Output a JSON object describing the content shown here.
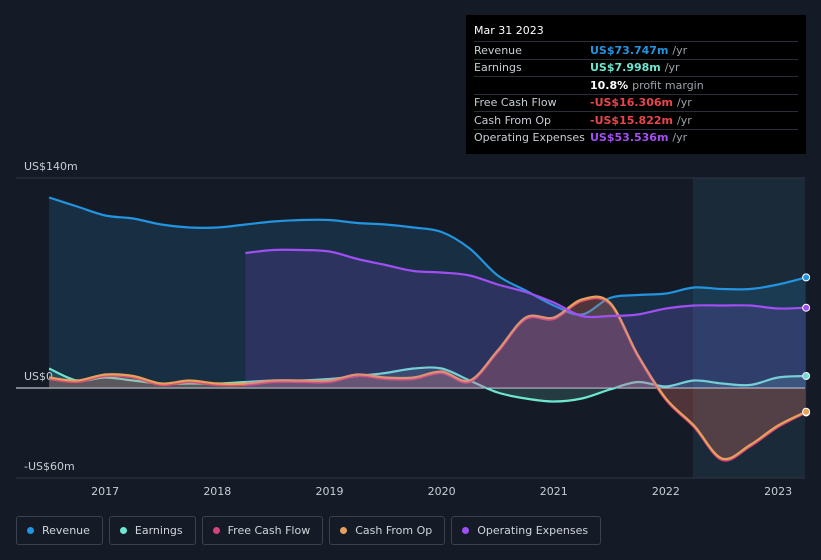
{
  "chart_data": {
    "type": "line",
    "x": [
      2016.5,
      2016.75,
      2017,
      2017.25,
      2017.5,
      2017.75,
      2018,
      2018.25,
      2018.5,
      2018.75,
      2019,
      2019.25,
      2019.5,
      2019.75,
      2020,
      2020.25,
      2020.5,
      2020.75,
      2021,
      2021.25,
      2021.5,
      2021.75,
      2022,
      2022.25,
      2022.5,
      2022.75,
      2023,
      2023.25
    ],
    "xlim": [
      2016.205,
      2023.24
    ],
    "xticks": [
      2017,
      2018,
      2019,
      2020,
      2021,
      2022,
      2023
    ],
    "ylim": [
      -60,
      140
    ],
    "yticks": [
      {
        "value": -60,
        "label": "-US$60m"
      },
      {
        "value": 0,
        "label": "US$0"
      },
      {
        "value": 140,
        "label": "US$140m"
      }
    ],
    "series": [
      {
        "name": "Revenue",
        "color": "#2394df",
        "values": [
          127,
          121,
          115,
          113,
          109,
          107,
          107,
          109,
          111,
          112,
          112,
          110,
          109,
          107,
          104,
          93,
          75,
          65,
          55,
          49,
          60,
          62,
          63,
          67,
          66,
          66,
          69,
          73.747
        ]
      },
      {
        "name": "Earnings",
        "color": "#6ee7d1",
        "values": [
          13,
          5,
          7,
          5,
          3,
          3,
          3,
          4,
          5,
          5,
          6,
          8,
          10,
          13,
          13,
          5,
          -3,
          -7,
          -9,
          -7,
          -1,
          4,
          1,
          5,
          3,
          2,
          7,
          7.998
        ]
      },
      {
        "name": "Free Cash Flow",
        "color": "#d6427a",
        "values": [
          6,
          4,
          8,
          7,
          2,
          4,
          2,
          2,
          4,
          4,
          4,
          8,
          6,
          6,
          10,
          4,
          24,
          46,
          46,
          58,
          56,
          21,
          -8,
          -26,
          -48,
          -39,
          -26,
          -16.306
        ]
      },
      {
        "name": "Cash From Op",
        "color": "#e6a15b",
        "values": [
          7,
          5,
          9,
          8,
          3,
          5,
          3,
          3,
          5,
          5,
          5,
          9,
          7,
          7,
          11,
          5,
          25,
          47,
          47,
          59,
          57,
          22,
          -7,
          -25,
          -47,
          -38,
          -25,
          -15.822
        ]
      },
      {
        "name": "Operating Expenses",
        "color": "#9f4ff2",
        "values": [
          null,
          null,
          null,
          null,
          null,
          null,
          null,
          90,
          92,
          92,
          91,
          86,
          82,
          78,
          77,
          75,
          69,
          64,
          57,
          48,
          48,
          49,
          53,
          55,
          55,
          55,
          53,
          53.536
        ]
      }
    ]
  },
  "tooltip": {
    "date": "Mar 31 2023",
    "rows": [
      {
        "label": "Revenue",
        "value": "US$73.747m",
        "unit": "/yr",
        "color": "#2394df"
      },
      {
        "label": "Earnings",
        "value": "US$7.998m",
        "unit": "/yr",
        "color": "#6ee7d1"
      },
      {
        "label": "",
        "value": "10.8%",
        "unit": "profit margin",
        "color": "#ffffff"
      },
      {
        "label": "Free Cash Flow",
        "value": "-US$16.306m",
        "unit": "/yr",
        "color": "#e8464a"
      },
      {
        "label": "Cash From Op",
        "value": "-US$15.822m",
        "unit": "/yr",
        "color": "#e8464a"
      },
      {
        "label": "Operating Expenses",
        "value": "US$53.536m",
        "unit": "/yr",
        "color": "#a34ff2"
      }
    ]
  }
}
